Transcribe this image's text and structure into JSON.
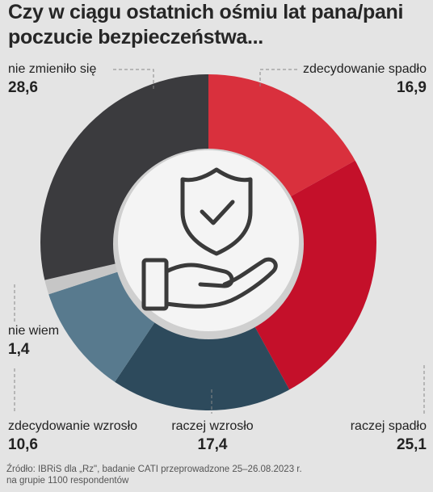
{
  "title": {
    "line1": "Czy w ciągu ostatnich ośmiu lat pana/pani",
    "line2": "poczucie bezpieczeństwa..."
  },
  "chart_data": {
    "type": "pie",
    "variant": "donut",
    "unit": "%",
    "slices": [
      {
        "label": "zdecydowanie spadło",
        "value": 16.9,
        "display": "16,9",
        "color": "#d9303d"
      },
      {
        "label": "raczej spadło",
        "value": 25.1,
        "display": "25,1",
        "color": "#c4102a"
      },
      {
        "label": "raczej wzrosło",
        "value": 17.4,
        "display": "17,4",
        "color": "#2d4a5c"
      },
      {
        "label": "zdecydowanie wzrosło",
        "value": 10.6,
        "display": "10,6",
        "color": "#587a8e"
      },
      {
        "label": "nie wiem",
        "value": 1.4,
        "display": "1,4",
        "color": "#c6c6c6"
      },
      {
        "label": "nie zmieniło się",
        "value": 28.6,
        "display": "28,6",
        "color": "#3b3b3e"
      }
    ],
    "center_icon": "shield-check-hand-icon"
  },
  "source": {
    "line1": "Źródło: IBRiS dla „Rz\", badanie CATI przeprowadzone 25–26.08.2023 r.",
    "line2": "na grupie 1100 respondentów"
  }
}
